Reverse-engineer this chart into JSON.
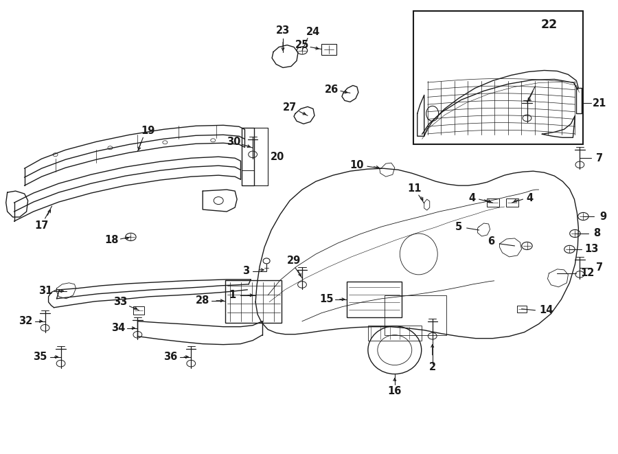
{
  "bg_color": "#ffffff",
  "line_color": "#1a1a1a",
  "fig_width": 9.0,
  "fig_height": 6.61,
  "lw_main": 1.0,
  "lw_thin": 0.6,
  "label_fontsize": 9.5
}
